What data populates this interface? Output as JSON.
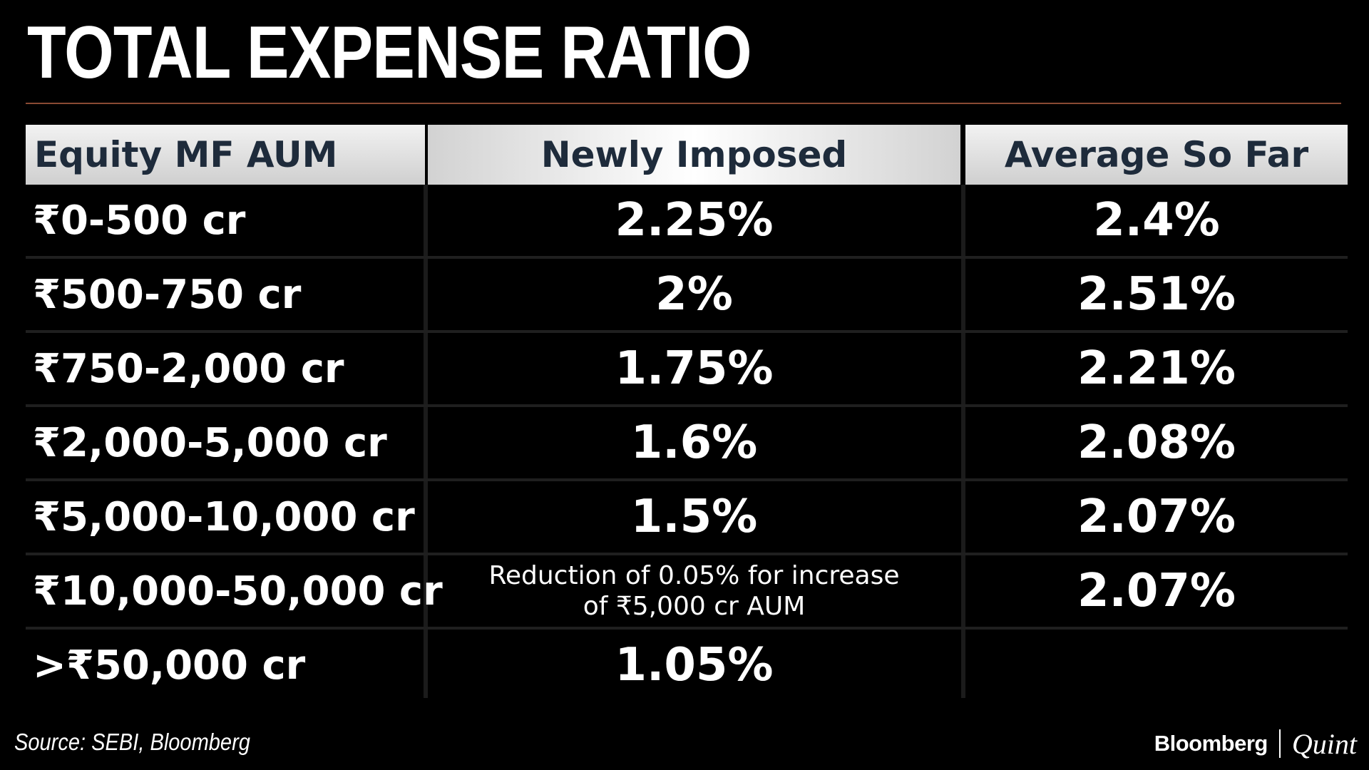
{
  "title": "TOTAL EXPENSE RATIO",
  "colors": {
    "background": "#000000",
    "header_text": "#1e2b3b",
    "title_rule": "#8a4a33",
    "text": "#ffffff"
  },
  "chart_data": {
    "type": "table",
    "title": "TOTAL EXPENSE RATIO",
    "columns": [
      "Equity MF AUM",
      "Newly Imposed",
      "Average So Far"
    ],
    "rows": [
      [
        "₹0-500 cr",
        "2.25%",
        "2.4%"
      ],
      [
        "₹500-750 cr",
        "2%",
        "2.51%"
      ],
      [
        "₹750-2,000 cr",
        "1.75%",
        "2.21%"
      ],
      [
        "₹2,000-5,000 cr",
        "1.6%",
        "2.08%"
      ],
      [
        "₹5,000-10,000 cr",
        "1.5%",
        "2.07%"
      ],
      [
        "₹10,000-50,000 cr",
        "Reduction of 0.05% for increase of ₹5,000 cr AUM",
        "2.07%"
      ],
      [
        ">₹50,000 cr",
        "1.05%",
        ""
      ]
    ],
    "note_lines": [
      "Reduction of 0.05% for increase",
      "of ₹5,000 cr AUM"
    ]
  },
  "footer": {
    "source": "Source: SEBI, Bloomberg",
    "logo_left": "Bloomberg",
    "logo_right": "Quint"
  }
}
